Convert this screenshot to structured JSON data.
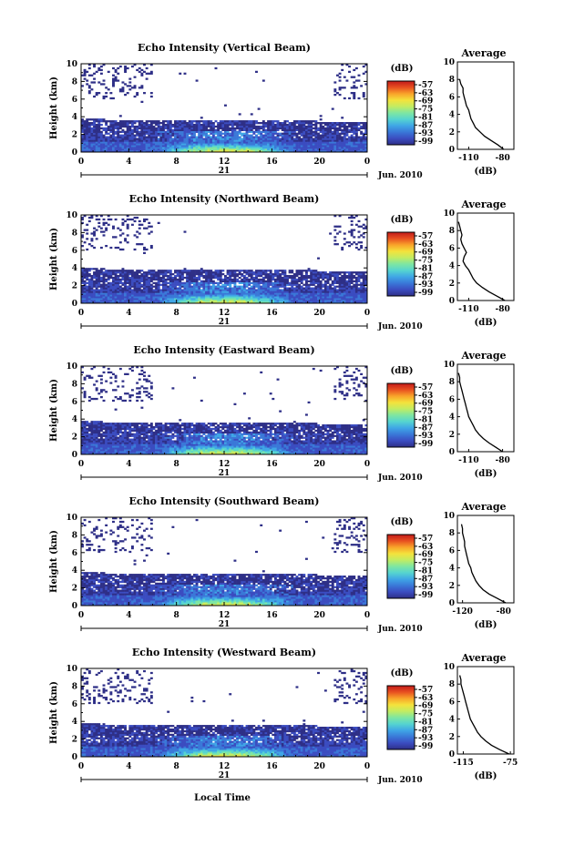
{
  "figure": {
    "xlabel": "Local Time",
    "date_label": "Jun. 2010",
    "day_label": "21",
    "height_label": "Height (km)",
    "colorbar_unit": "(dB)",
    "average_title": "Average",
    "average_xlabel": "(dB)"
  },
  "chart_data": [
    {
      "type": "heatmap",
      "title": "Echo Intensity (Vertical Beam)",
      "ylabel": "Height (km)",
      "xlim": [
        0,
        24
      ],
      "ylim": [
        0,
        10
      ],
      "x_ticks": [
        "0",
        "4",
        "8",
        "12",
        "16",
        "20",
        "0"
      ],
      "y_ticks": [
        "0",
        "2",
        "4",
        "6",
        "8",
        "10"
      ],
      "colorbar_ticks": [
        "-57",
        "-63",
        "-69",
        "-75",
        "-81",
        "-87",
        "-93",
        "-99"
      ],
      "colorbar_range": [
        -99,
        -57
      ],
      "upper_layer_top_km": 3.8,
      "average_profile": {
        "title": "Average",
        "xlabel": "(dB)",
        "x_ticks": [
          "-110",
          "-80"
        ],
        "xlim": [
          -120,
          -70
        ],
        "heights_km": [
          0,
          0.5,
          1,
          1.5,
          2,
          2.5,
          3,
          3.5,
          4,
          4.5,
          5,
          5.5,
          6,
          6.5,
          7,
          7.5,
          8
        ],
        "values_db": [
          -79,
          -84,
          -90,
          -96,
          -100,
          -104,
          -106,
          -108,
          -109,
          -110,
          -112,
          -113,
          -114,
          -115,
          -115,
          -117,
          -118
        ]
      }
    },
    {
      "type": "heatmap",
      "title": "Echo Intensity (Northward Beam)",
      "ylabel": "Height (km)",
      "xlim": [
        0,
        24
      ],
      "ylim": [
        0,
        10
      ],
      "x_ticks": [
        "0",
        "4",
        "8",
        "12",
        "16",
        "20",
        "0"
      ],
      "y_ticks": [
        "0",
        "2",
        "4",
        "6",
        "8",
        "10"
      ],
      "colorbar_ticks": [
        "-57",
        "-63",
        "-69",
        "-75",
        "-81",
        "-87",
        "-93",
        "-99"
      ],
      "colorbar_range": [
        -99,
        -57
      ],
      "upper_layer_top_km": 4.0,
      "average_profile": {
        "title": "Average",
        "xlabel": "(dB)",
        "x_ticks": [
          "-110",
          "-80"
        ],
        "xlim": [
          -120,
          -70
        ],
        "heights_km": [
          0,
          0.5,
          1,
          1.5,
          2,
          2.5,
          3,
          3.5,
          4,
          4.5,
          5,
          5.5,
          6,
          6.5,
          7,
          7.5,
          8,
          8.5,
          9
        ],
        "values_db": [
          -78,
          -85,
          -92,
          -98,
          -103,
          -106,
          -108,
          -110,
          -113,
          -115,
          -114,
          -112,
          -114,
          -116,
          -117,
          -116,
          -117,
          -118,
          -119
        ]
      }
    },
    {
      "type": "heatmap",
      "title": "Echo Intensity (Eastward Beam)",
      "ylabel": "Height (km)",
      "xlim": [
        0,
        24
      ],
      "ylim": [
        0,
        10
      ],
      "x_ticks": [
        "0",
        "4",
        "8",
        "12",
        "16",
        "20",
        "0"
      ],
      "y_ticks": [
        "0",
        "2",
        "4",
        "6",
        "8",
        "10"
      ],
      "colorbar_ticks": [
        "-57",
        "-63",
        "-69",
        "-75",
        "-81",
        "-87",
        "-93",
        "-99"
      ],
      "colorbar_range": [
        -99,
        -57
      ],
      "upper_layer_top_km": 3.8,
      "average_profile": {
        "title": "Average",
        "xlabel": "(dB)",
        "x_ticks": [
          "-110",
          "-80"
        ],
        "xlim": [
          -120,
          -70
        ],
        "heights_km": [
          0,
          0.5,
          1,
          1.5,
          2,
          2.5,
          3,
          3.5,
          4,
          4.5,
          5,
          5.5,
          6,
          6.5,
          7,
          7.5,
          8,
          8.5,
          9
        ],
        "values_db": [
          -80,
          -86,
          -92,
          -97,
          -101,
          -104,
          -106,
          -108,
          -110,
          -111,
          -112,
          -113,
          -114,
          -115,
          -116,
          -117,
          -118,
          -118,
          -119
        ]
      }
    },
    {
      "type": "heatmap",
      "title": "Echo Intensity (Southward Beam)",
      "ylabel": "Height (km)",
      "xlim": [
        0,
        24
      ],
      "ylim": [
        0,
        10
      ],
      "x_ticks": [
        "0",
        "4",
        "8",
        "12",
        "16",
        "20",
        "0"
      ],
      "y_ticks": [
        "0",
        "2",
        "4",
        "6",
        "8",
        "10"
      ],
      "colorbar_ticks": [
        "-57",
        "-63",
        "-69",
        "-75",
        "-81",
        "-87",
        "-93",
        "-99"
      ],
      "colorbar_range": [
        -99,
        -57
      ],
      "upper_layer_top_km": 3.8,
      "average_profile": {
        "title": "Average",
        "xlabel": "(dB)",
        "x_ticks": [
          "-120",
          "-80"
        ],
        "xlim": [
          -125,
          -70
        ],
        "heights_km": [
          0,
          0.5,
          1,
          1.5,
          2,
          2.5,
          3,
          3.5,
          4,
          4.5,
          5,
          5.5,
          6,
          6.5,
          7,
          7.5,
          8,
          8.5,
          9
        ],
        "values_db": [
          -78,
          -86,
          -94,
          -100,
          -104,
          -107,
          -109,
          -111,
          -112,
          -114,
          -115,
          -116,
          -117,
          -118,
          -118,
          -119,
          -120,
          -120,
          -121
        ]
      }
    },
    {
      "type": "heatmap",
      "title": "Echo Intensity (Westward Beam)",
      "ylabel": "Height (km)",
      "xlim": [
        0,
        24
      ],
      "ylim": [
        0,
        10
      ],
      "x_ticks": [
        "0",
        "4",
        "8",
        "12",
        "16",
        "20",
        "0"
      ],
      "y_ticks": [
        "0",
        "2",
        "4",
        "6",
        "8",
        "10"
      ],
      "colorbar_ticks": [
        "-57",
        "-63",
        "-69",
        "-75",
        "-81",
        "-87",
        "-93",
        "-99"
      ],
      "colorbar_range": [
        -99,
        -57
      ],
      "upper_layer_top_km": 3.8,
      "average_profile": {
        "title": "Average",
        "xlabel": "(dB)",
        "x_ticks": [
          "-115",
          "-75"
        ],
        "xlim": [
          -120,
          -72
        ],
        "heights_km": [
          0,
          0.5,
          1,
          1.5,
          2,
          2.5,
          3,
          3.5,
          4,
          4.5,
          5,
          5.5,
          6,
          6.5,
          7,
          7.5,
          8,
          8.5,
          9
        ],
        "values_db": [
          -76,
          -84,
          -91,
          -96,
          -100,
          -103,
          -105,
          -107,
          -109,
          -110,
          -111,
          -112,
          -113,
          -114,
          -115,
          -116,
          -117,
          -117,
          -118
        ]
      }
    }
  ],
  "colors": {
    "colormap": [
      "#2e2f87",
      "#3b4cc0",
      "#3a78d8",
      "#3fa6e6",
      "#55d4d0",
      "#7ee6a2",
      "#c2ec62",
      "#f4e23c",
      "#f9a42a",
      "#e85020",
      "#c11a1a"
    ],
    "upper_noise": "#2e2f87",
    "frame": "#000000"
  }
}
